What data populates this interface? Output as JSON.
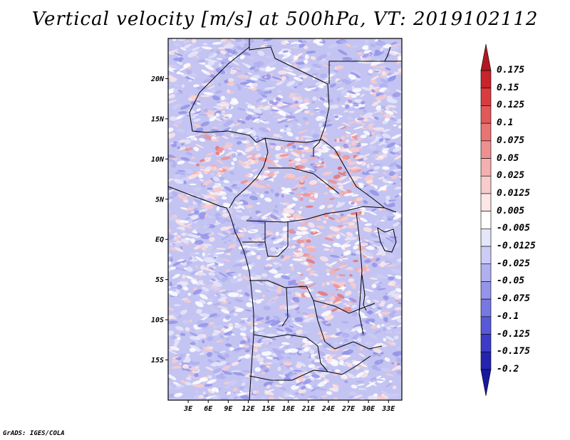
{
  "title": "Vertical velocity [m/s] at 500hPa, VT: 2019102112",
  "credit": "GrADS: IGES/COLA",
  "map": {
    "lon_range": [
      0,
      35
    ],
    "lat_range": [
      -20,
      25
    ],
    "lat_ticks": [
      {
        "value": 20,
        "label": "20N"
      },
      {
        "value": 15,
        "label": "15N"
      },
      {
        "value": 10,
        "label": "10N"
      },
      {
        "value": 5,
        "label": "5N"
      },
      {
        "value": 0,
        "label": "EQ"
      },
      {
        "value": -5,
        "label": "5S"
      },
      {
        "value": -10,
        "label": "10S"
      },
      {
        "value": -15,
        "label": "15S"
      }
    ],
    "lon_ticks": [
      {
        "value": 3,
        "label": "3E"
      },
      {
        "value": 6,
        "label": "6E"
      },
      {
        "value": 9,
        "label": "9E"
      },
      {
        "value": 12,
        "label": "12E"
      },
      {
        "value": 15,
        "label": "15E"
      },
      {
        "value": 18,
        "label": "18E"
      },
      {
        "value": 21,
        "label": "21E"
      },
      {
        "value": 24,
        "label": "24E"
      },
      {
        "value": 27,
        "label": "27E"
      },
      {
        "value": 30,
        "label": "30E"
      },
      {
        "value": 33,
        "label": "33E"
      }
    ]
  },
  "colorbar": {
    "levels": [
      "0.175",
      "0.15",
      "0.125",
      "0.1",
      "0.075",
      "0.05",
      "0.025",
      "0.0125",
      "0.005",
      "-0.005",
      "-0.0125",
      "-0.025",
      "-0.05",
      "-0.075",
      "-0.1",
      "-0.125",
      "-0.175",
      "-0.2"
    ],
    "colors": [
      "#b01822",
      "#c8242c",
      "#d83c3e",
      "#e25858",
      "#e87474",
      "#ee9090",
      "#f4b0b0",
      "#f8cccc",
      "#fce6e6",
      "#ffffff",
      "#e6e6fa",
      "#ccccf6",
      "#b0b0f0",
      "#9494ea",
      "#7878e2",
      "#5858d8",
      "#3c3cc8",
      "#2424b0",
      "#1818a0"
    ]
  }
}
